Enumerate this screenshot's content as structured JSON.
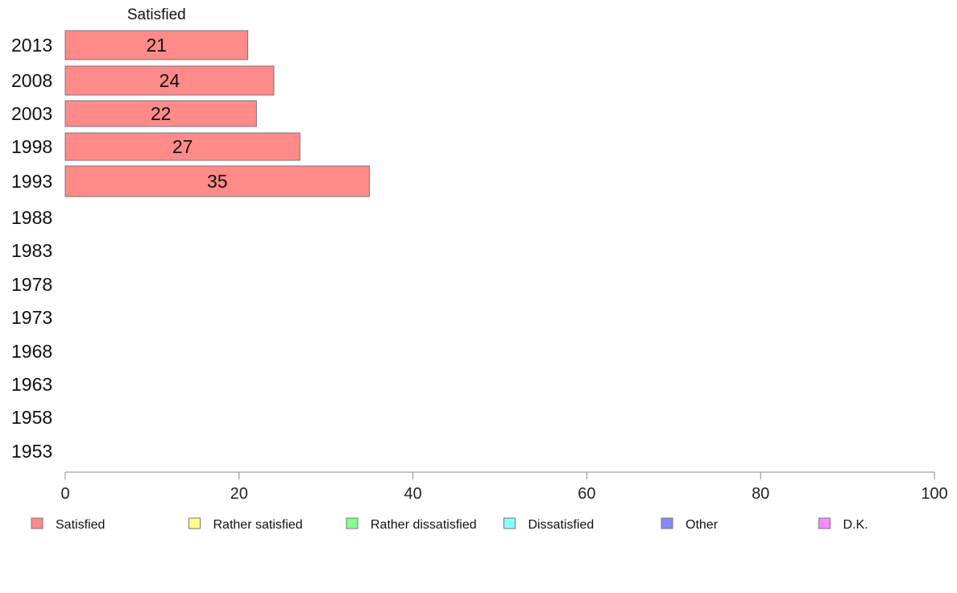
{
  "chart_data": {
    "type": "bar",
    "orientation": "horizontal",
    "stacked": true,
    "categories": [
      "2013",
      "2008",
      "2003",
      "1998",
      "1993",
      "1988",
      "1983",
      "1978",
      "1973",
      "1968",
      "1963",
      "1958",
      "1953"
    ],
    "series": [
      {
        "name": "Satisfied",
        "color": "#ff8a8a",
        "values": [
          21,
          24,
          22,
          27,
          35,
          null,
          null,
          null,
          null,
          null,
          null,
          null,
          null
        ],
        "labels": [
          "21",
          "24",
          "22",
          "27",
          "35",
          "",
          "",
          "",
          "",
          "",
          "",
          "",
          ""
        ]
      },
      {
        "name": "Rather satisfied",
        "color": "#ffff88",
        "values": [
          null,
          null,
          null,
          null,
          null,
          null,
          null,
          null,
          null,
          null,
          null,
          null,
          null
        ]
      },
      {
        "name": "Rather dissatisfied",
        "color": "#88ff88",
        "values": [
          null,
          null,
          null,
          null,
          null,
          null,
          null,
          null,
          null,
          null,
          null,
          null,
          null
        ]
      },
      {
        "name": "Dissatisfied",
        "color": "#88ffff",
        "values": [
          null,
          null,
          null,
          null,
          null,
          null,
          null,
          null,
          null,
          null,
          null,
          null,
          null
        ]
      },
      {
        "name": "Other",
        "color": "#8888ff",
        "values": [
          null,
          null,
          null,
          null,
          null,
          null,
          null,
          null,
          null,
          null,
          null,
          null,
          null
        ]
      },
      {
        "name": "D.K.",
        "color": "#ff88ff",
        "values": [
          null,
          null,
          null,
          null,
          null,
          null,
          null,
          null,
          null,
          null,
          null,
          null,
          null
        ]
      }
    ],
    "top_label": "Satisfied",
    "xlim": [
      0,
      100
    ],
    "xticks": [
      "0",
      "20",
      "40",
      "60",
      "80",
      "100"
    ],
    "grid": false,
    "legend_position": "bottom"
  }
}
